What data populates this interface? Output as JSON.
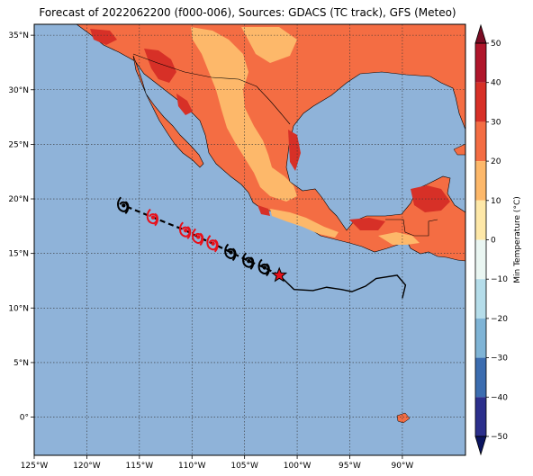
{
  "title": "Forecast of 2022062200 (f000-006), Sources: GDACS (TC track), GFS (Meteo)",
  "map": {
    "lon_range": [
      -125,
      -84
    ],
    "lat_range": [
      -3.5,
      36
    ],
    "lon_ticks": [
      {
        "value": -125,
        "label": "125°W"
      },
      {
        "value": -120,
        "label": "120°W"
      },
      {
        "value": -115,
        "label": "115°W"
      },
      {
        "value": -110,
        "label": "110°W"
      },
      {
        "value": -105,
        "label": "105°W"
      },
      {
        "value": -100,
        "label": "100°W"
      },
      {
        "value": -95,
        "label": "95°W"
      },
      {
        "value": -90,
        "label": "90°W"
      }
    ],
    "lat_ticks": [
      {
        "value": 35,
        "label": "35°N"
      },
      {
        "value": 30,
        "label": "30°N"
      },
      {
        "value": 25,
        "label": "25°N"
      },
      {
        "value": 20,
        "label": "20°N"
      },
      {
        "value": 15,
        "label": "15°N"
      },
      {
        "value": 10,
        "label": "10°N"
      },
      {
        "value": 5,
        "label": "5°N"
      },
      {
        "value": 0,
        "label": "0°"
      }
    ],
    "ocean_color": "#8fb3d9",
    "grid": true
  },
  "colorbar": {
    "label": "Min Temperature (°C)",
    "ticks": [
      {
        "value": 50,
        "label": "50"
      },
      {
        "value": 40,
        "label": "40"
      },
      {
        "value": 30,
        "label": "30"
      },
      {
        "value": 20,
        "label": "20"
      },
      {
        "value": 10,
        "label": "10"
      },
      {
        "value": 0,
        "label": "0"
      },
      {
        "value": -10,
        "label": "−10"
      },
      {
        "value": -20,
        "label": "−20"
      },
      {
        "value": -30,
        "label": "−30"
      },
      {
        "value": -40,
        "label": "−40"
      },
      {
        "value": -50,
        "label": "−50"
      }
    ],
    "bands": [
      {
        "from": 40,
        "to": 50,
        "color": "#b0162b"
      },
      {
        "from": 30,
        "to": 40,
        "color": "#d73027"
      },
      {
        "from": 20,
        "to": 30,
        "color": "#f46d43"
      },
      {
        "from": 10,
        "to": 20,
        "color": "#fdb86a"
      },
      {
        "from": 0,
        "to": 10,
        "color": "#fee8a8"
      },
      {
        "from": -10,
        "to": 0,
        "color": "#eaf6f2"
      },
      {
        "from": -20,
        "to": -10,
        "color": "#b5ddea"
      },
      {
        "from": -30,
        "to": -20,
        "color": "#7fb4d6"
      },
      {
        "from": -40,
        "to": -30,
        "color": "#3c6db0"
      },
      {
        "from": -50,
        "to": -40,
        "color": "#2c2f8c"
      }
    ],
    "over_color": "#7a0d24",
    "under_color": "#0b1460"
  },
  "track": {
    "current_position": {
      "lon": -101.7,
      "lat": 13.0
    },
    "forecast_points": [
      {
        "lon": -103.1,
        "lat": 13.7,
        "color": "#000000"
      },
      {
        "lon": -104.6,
        "lat": 14.3,
        "color": "#000000"
      },
      {
        "lon": -106.3,
        "lat": 15.1,
        "color": "#000000"
      },
      {
        "lon": -108.0,
        "lat": 15.9,
        "color": "#e8101a"
      },
      {
        "lon": -109.4,
        "lat": 16.5,
        "color": "#e8101a"
      },
      {
        "lon": -110.6,
        "lat": 17.1,
        "color": "#e8101a"
      },
      {
        "lon": -113.7,
        "lat": 18.3,
        "color": "#e8101a"
      },
      {
        "lon": -116.5,
        "lat": 19.4,
        "color": "#000000"
      }
    ],
    "past_track": [
      {
        "lon": -101.7,
        "lat": 13.0
      },
      {
        "lon": -100.3,
        "lat": 11.7
      },
      {
        "lon": -98.5,
        "lat": 11.6
      },
      {
        "lon": -97.2,
        "lat": 11.9
      },
      {
        "lon": -95.8,
        "lat": 11.7
      },
      {
        "lon": -94.8,
        "lat": 11.5
      },
      {
        "lon": -93.5,
        "lat": 12.0
      },
      {
        "lon": -92.5,
        "lat": 12.7
      },
      {
        "lon": -90.5,
        "lat": 13.0
      },
      {
        "lon": -89.7,
        "lat": 12.1
      },
      {
        "lon": -90.0,
        "lat": 10.9
      }
    ]
  }
}
